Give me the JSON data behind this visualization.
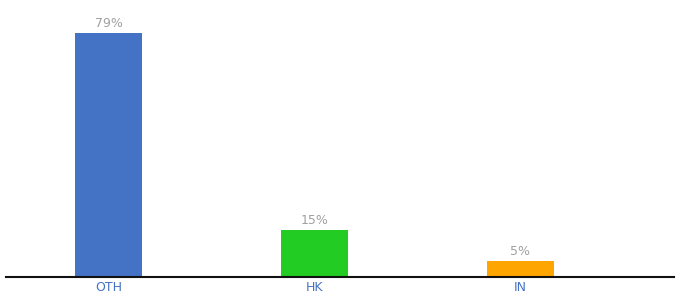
{
  "categories": [
    "OTH",
    "HK",
    "IN"
  ],
  "values": [
    79,
    15,
    5
  ],
  "bar_colors": [
    "#4472c4",
    "#22cc22",
    "#ffa500"
  ],
  "labels": [
    "79%",
    "15%",
    "5%"
  ],
  "label_color": "#a0a0a0",
  "background_color": "#ffffff",
  "ylim": [
    0,
    88
  ],
  "bar_width": 0.65,
  "label_fontsize": 9,
  "tick_fontsize": 9,
  "tick_color": "#4472c4",
  "x_positions": [
    1,
    3,
    5
  ],
  "xlim": [
    0,
    6.5
  ]
}
